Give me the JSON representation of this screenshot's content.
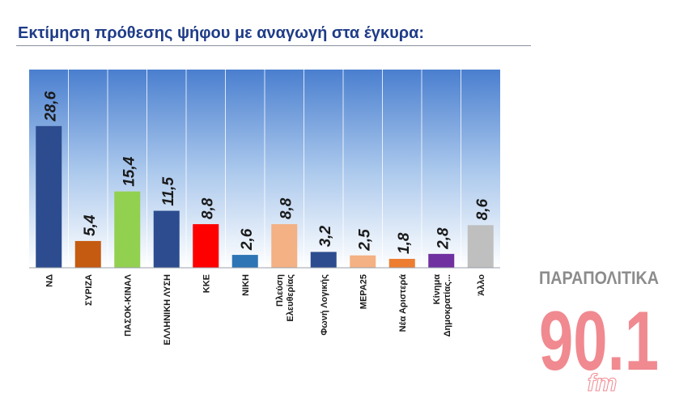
{
  "title": "Εκτίμηση πρόθεσης ψήφου με αναγωγή στα έγκυρα:",
  "chart_data": {
    "type": "bar",
    "categories": [
      "ΝΔ",
      "ΣΥΡΙΖΑ",
      "ΠΑΣΟΚ-ΚΙΝΑΛ",
      "ΕΛΛΗΝΙΚΗ ΛΥΣΗ",
      "ΚΚΕ",
      "ΝΙΚΗ",
      "Πλεύση Ελευθερίας",
      "Φωνή Λογικής",
      "ΜΕΡΑ25",
      "Νέα Αριστερά",
      "Κίνημα Δημοκρατίας...",
      "Άλλο"
    ],
    "values": [
      28.6,
      5.4,
      15.4,
      11.5,
      8.8,
      2.6,
      8.8,
      3.2,
      2.5,
      1.8,
      2.8,
      8.6
    ],
    "value_labels": [
      "28,6",
      "5,4",
      "15,4",
      "11,5",
      "8,8",
      "2,6",
      "8,8",
      "3,2",
      "2,5",
      "1,8",
      "2,8",
      "8,6"
    ],
    "colors": [
      "#2c4c8f",
      "#c55a11",
      "#92d050",
      "#2c4c8f",
      "#ff0000",
      "#2e75b6",
      "#f4b183",
      "#2c4c8f",
      "#f4b183",
      "#ed7d31",
      "#7030a0",
      "#bfbfbf"
    ],
    "ylim": [
      0,
      40
    ],
    "grid": false,
    "background": "gradient-blue"
  },
  "logo": {
    "brand": "ΠΑΡΑΠΟΛΙΤΙΚΑ",
    "frequency": "90.1",
    "band": "fm",
    "colors": {
      "text": "#8c8c8c",
      "number": "#f08a90",
      "band": "#ffffff"
    }
  }
}
